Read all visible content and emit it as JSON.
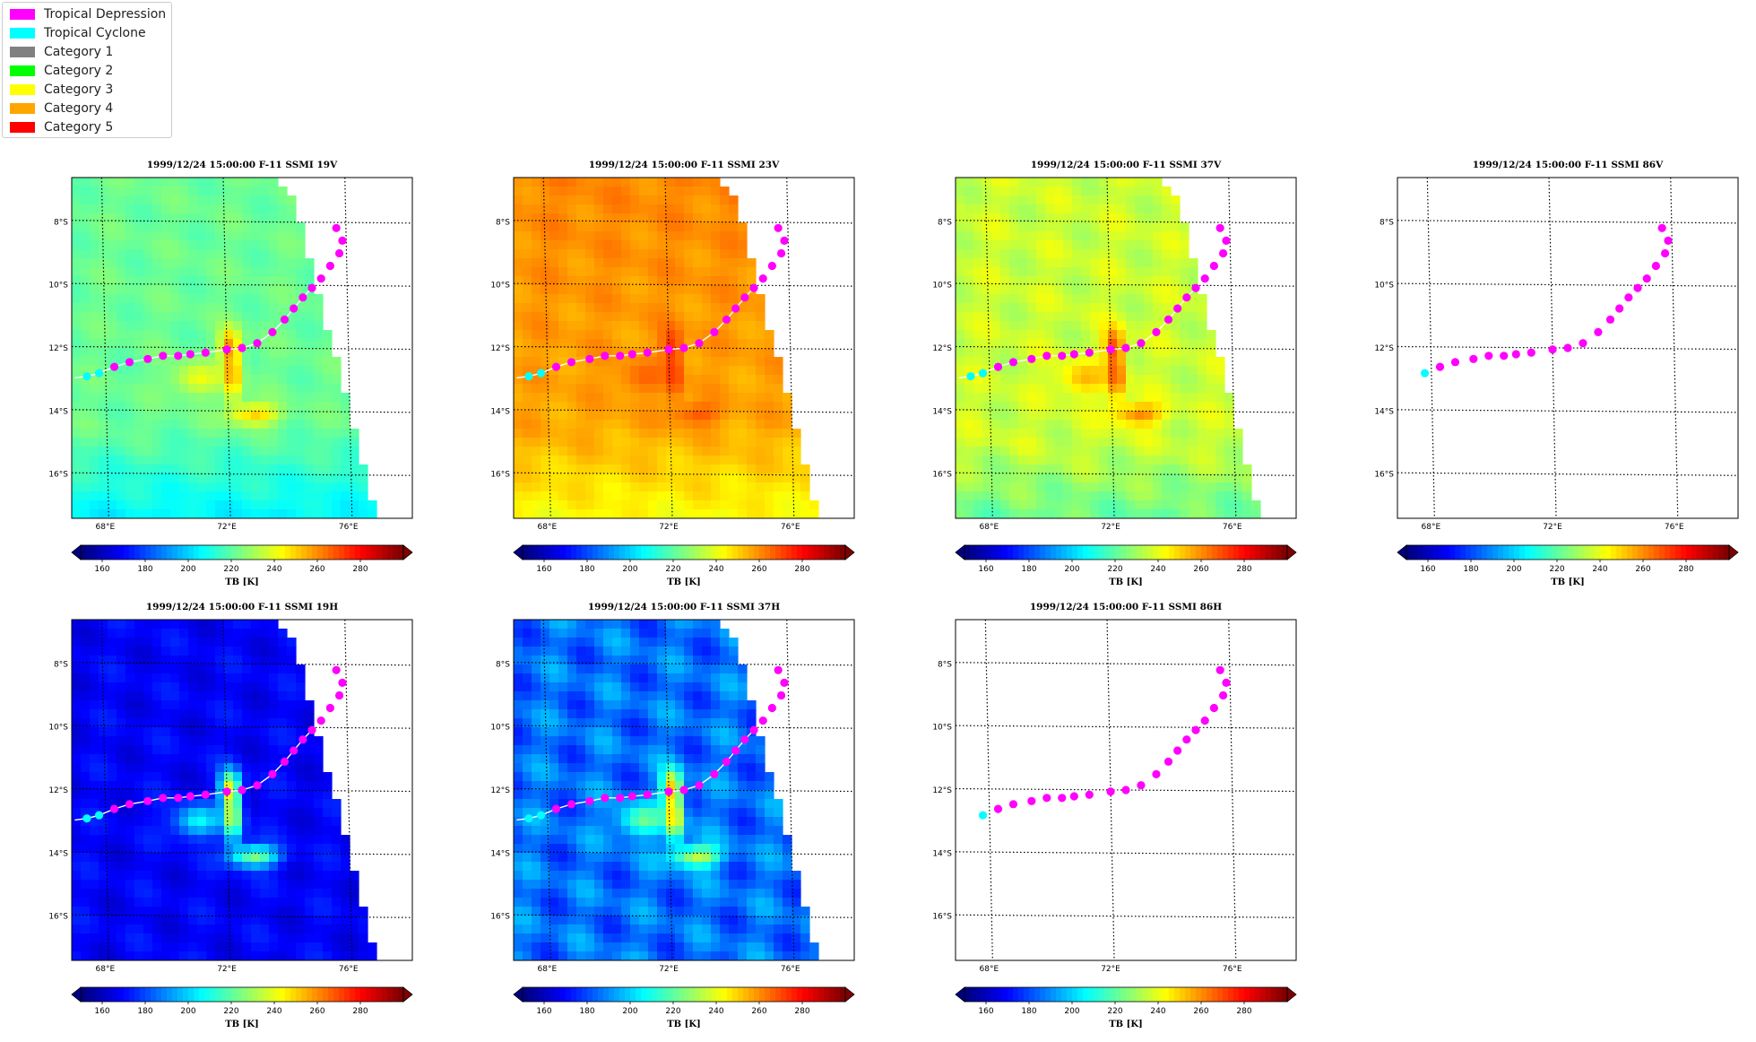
{
  "legend": {
    "items": [
      {
        "label": "Tropical Depression",
        "color": "#ff00ff"
      },
      {
        "label": "Tropical Cyclone",
        "color": "#00ffff"
      },
      {
        "label": "Category 1",
        "color": "#808080"
      },
      {
        "label": "Category 2",
        "color": "#00ff00"
      },
      {
        "label": "Category 3",
        "color": "#ffff00"
      },
      {
        "label": "Category 4",
        "color": "#ffa500"
      },
      {
        "label": "Category 5",
        "color": "#ff0000"
      }
    ]
  },
  "axes": {
    "lon_ticks": [
      "68°E",
      "72°E",
      "76°E"
    ],
    "lat_ticks": [
      "8°S",
      "10°S",
      "12°S",
      "14°S",
      "16°S"
    ]
  },
  "colorbar": {
    "label": "TB [K]",
    "ticks": [
      "160",
      "180",
      "200",
      "220",
      "240",
      "260",
      "280"
    ],
    "min": 150,
    "max": 300
  },
  "track": {
    "points": [
      {
        "lon": 67.0,
        "lat": -12.95,
        "cat": "Tropical Cyclone",
        "shown": "none"
      },
      {
        "lon": 67.4,
        "lat": -12.9,
        "cat": "Tropical Cyclone",
        "shown": "some"
      },
      {
        "lon": 67.8,
        "lat": -12.8,
        "cat": "Tropical Cyclone",
        "shown": "some"
      },
      {
        "lon": 68.3,
        "lat": -12.6,
        "cat": "Tropical Depression",
        "shown": "all"
      },
      {
        "lon": 68.8,
        "lat": -12.45,
        "cat": "Tropical Depression",
        "shown": "all"
      },
      {
        "lon": 69.4,
        "lat": -12.35,
        "cat": "Tropical Depression",
        "shown": "all"
      },
      {
        "lon": 69.9,
        "lat": -12.25,
        "cat": "Tropical Depression",
        "shown": "all"
      },
      {
        "lon": 70.4,
        "lat": -12.25,
        "cat": "Tropical Depression",
        "shown": "all"
      },
      {
        "lon": 70.8,
        "lat": -12.2,
        "cat": "Tropical Depression",
        "shown": "all"
      },
      {
        "lon": 71.3,
        "lat": -12.15,
        "cat": "Tropical Depression",
        "shown": "all"
      },
      {
        "lon": 72.0,
        "lat": -12.05,
        "cat": "Tropical Depression",
        "shown": "all"
      },
      {
        "lon": 72.5,
        "lat": -12.0,
        "cat": "Tropical Depression",
        "shown": "all"
      },
      {
        "lon": 73.0,
        "lat": -11.85,
        "cat": "Tropical Depression",
        "shown": "all"
      },
      {
        "lon": 73.5,
        "lat": -11.5,
        "cat": "Tropical Depression",
        "shown": "all"
      },
      {
        "lon": 73.9,
        "lat": -11.1,
        "cat": "Tropical Depression",
        "shown": "all"
      },
      {
        "lon": 74.2,
        "lat": -10.75,
        "cat": "Tropical Depression",
        "shown": "all"
      },
      {
        "lon": 74.5,
        "lat": -10.4,
        "cat": "Tropical Depression",
        "shown": "all"
      },
      {
        "lon": 74.8,
        "lat": -10.1,
        "cat": "Tropical Depression",
        "shown": "all"
      },
      {
        "lon": 75.1,
        "lat": -9.8,
        "cat": "Tropical Depression",
        "shown": "all"
      },
      {
        "lon": 75.4,
        "lat": -9.4,
        "cat": "Tropical Depression",
        "shown": "all"
      },
      {
        "lon": 75.7,
        "lat": -9.0,
        "cat": "Tropical Depression",
        "shown": "all"
      },
      {
        "lon": 75.8,
        "lat": -8.6,
        "cat": "Tropical Depression",
        "shown": "all"
      },
      {
        "lon": 75.6,
        "lat": -8.2,
        "cat": "Tropical Depression",
        "shown": "all"
      }
    ]
  },
  "panels": [
    {
      "title": "1999/12/24 15:00:00  F-11 SSMI 19V",
      "channel": "19V",
      "has_image": true
    },
    {
      "title": "1999/12/24 15:00:00  F-11 SSMI 23V",
      "channel": "23V",
      "has_image": true
    },
    {
      "title": "1999/12/24 15:00:00  F-11 SSMI 37V",
      "channel": "37V",
      "has_image": true
    },
    {
      "title": "1999/12/24 15:00:00  F-11 SSMI 86V",
      "channel": "86V",
      "has_image": false
    },
    {
      "title": "1999/12/24 15:00:00  F-11 SSMI 19H",
      "channel": "19H",
      "has_image": true
    },
    {
      "title": "1999/12/24 15:00:00  F-11 SSMI 37H",
      "channel": "37H",
      "has_image": true
    },
    {
      "title": "1999/12/24 15:00:00  F-11 SSMI 86H",
      "channel": "86H",
      "has_image": false
    }
  ]
}
